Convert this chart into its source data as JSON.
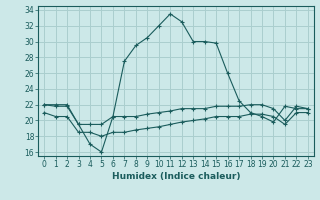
{
  "xlabel": "Humidex (Indice chaleur)",
  "xlim": [
    -0.5,
    23.5
  ],
  "ylim": [
    15.5,
    34.5
  ],
  "yticks": [
    16,
    18,
    20,
    22,
    24,
    26,
    28,
    30,
    32,
    34
  ],
  "xticks": [
    0,
    1,
    2,
    3,
    4,
    5,
    6,
    7,
    8,
    9,
    10,
    11,
    12,
    13,
    14,
    15,
    16,
    17,
    18,
    19,
    20,
    21,
    22,
    23
  ],
  "background_color": "#cce8e8",
  "grid_color": "#aacece",
  "line_color": "#1a5c5c",
  "series": [
    {
      "x": [
        0,
        1,
        2,
        3,
        4,
        5,
        6,
        7,
        8,
        9,
        10,
        11,
        12,
        13,
        14,
        15,
        16,
        17,
        18,
        19,
        20,
        21,
        22,
        23
      ],
      "y": [
        22.0,
        22.0,
        22.0,
        19.5,
        17.0,
        16.0,
        20.5,
        27.5,
        29.5,
        30.5,
        32.0,
        33.5,
        32.5,
        30.0,
        30.0,
        29.8,
        26.0,
        22.5,
        21.0,
        20.5,
        19.8,
        21.8,
        21.5,
        21.5
      ]
    },
    {
      "x": [
        0,
        1,
        2,
        3,
        4,
        5,
        6,
        7,
        8,
        9,
        10,
        11,
        12,
        13,
        14,
        15,
        16,
        17,
        18,
        19,
        20,
        21,
        22,
        23
      ],
      "y": [
        22.0,
        21.8,
        21.8,
        19.5,
        19.5,
        19.5,
        20.5,
        20.5,
        20.5,
        20.8,
        21.0,
        21.2,
        21.5,
        21.5,
        21.5,
        21.8,
        21.8,
        21.8,
        22.0,
        22.0,
        21.5,
        20.0,
        21.8,
        21.5
      ]
    },
    {
      "x": [
        0,
        1,
        2,
        3,
        4,
        5,
        6,
        7,
        8,
        9,
        10,
        11,
        12,
        13,
        14,
        15,
        16,
        17,
        18,
        19,
        20,
        21,
        22,
        23
      ],
      "y": [
        21.0,
        20.5,
        20.5,
        18.5,
        18.5,
        18.0,
        18.5,
        18.5,
        18.8,
        19.0,
        19.2,
        19.5,
        19.8,
        20.0,
        20.2,
        20.5,
        20.5,
        20.5,
        20.8,
        20.8,
        20.5,
        19.5,
        21.0,
        21.0
      ]
    }
  ]
}
